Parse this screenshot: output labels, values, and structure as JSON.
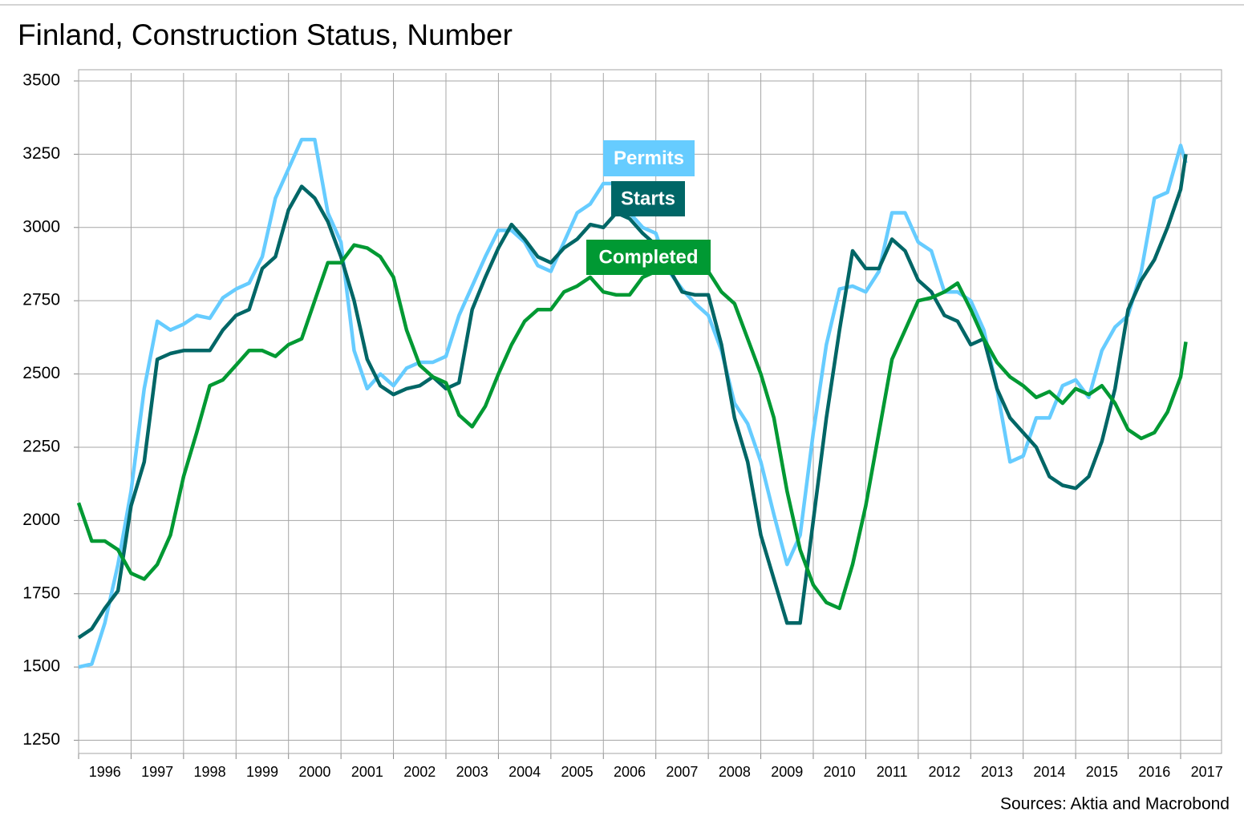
{
  "chart_data": {
    "type": "line",
    "title": "Finland, Construction Status, Number",
    "source": "Sources: Aktia and Macrobond",
    "x": [
      1996,
      1996.25,
      1996.5,
      1996.75,
      1997,
      1997.25,
      1997.5,
      1997.75,
      1998,
      1998.25,
      1998.5,
      1998.75,
      1999,
      1999.25,
      1999.5,
      1999.75,
      2000,
      2000.25,
      2000.5,
      2000.75,
      2001,
      2001.25,
      2001.5,
      2001.75,
      2002,
      2002.25,
      2002.5,
      2002.75,
      2003,
      2003.25,
      2003.5,
      2003.75,
      2004,
      2004.25,
      2004.5,
      2004.75,
      2005,
      2005.25,
      2005.5,
      2005.75,
      2006,
      2006.25,
      2006.5,
      2006.75,
      2007,
      2007.25,
      2007.5,
      2007.75,
      2008,
      2008.25,
      2008.5,
      2008.75,
      2009,
      2009.25,
      2009.5,
      2009.75,
      2010,
      2010.25,
      2010.5,
      2010.75,
      2011,
      2011.25,
      2011.5,
      2011.75,
      2012,
      2012.25,
      2012.5,
      2012.75,
      2013,
      2013.25,
      2013.5,
      2013.75,
      2014,
      2014.25,
      2014.5,
      2014.75,
      2015,
      2015.25,
      2015.5,
      2015.75,
      2016,
      2016.25,
      2016.5,
      2016.75,
      2017,
      2017.1
    ],
    "series": [
      {
        "name": "Permits",
        "color": "#66ccff",
        "values": [
          1500,
          1510,
          1650,
          1850,
          2100,
          2450,
          2680,
          2650,
          2670,
          2700,
          2690,
          2760,
          2790,
          2810,
          2900,
          3100,
          3200,
          3300,
          3300,
          3050,
          2950,
          2580,
          2450,
          2500,
          2460,
          2520,
          2540,
          2540,
          2560,
          2700,
          2800,
          2900,
          2990,
          2990,
          2950,
          2870,
          2850,
          2950,
          3050,
          3080,
          3150,
          3150,
          3050,
          3000,
          2980,
          2850,
          2790,
          2740,
          2700,
          2580,
          2400,
          2330,
          2200,
          2020,
          1850,
          1950,
          2300,
          2600,
          2790,
          2800,
          2780,
          2850,
          3050,
          3050,
          2950,
          2920,
          2780,
          2780,
          2750,
          2650,
          2450,
          2200,
          2220,
          2350,
          2350,
          2460,
          2480,
          2420,
          2580,
          2660,
          2700,
          2850,
          3100,
          3120,
          3280,
          3220
        ]
      },
      {
        "name": "Starts",
        "color": "#006666",
        "values": [
          1600,
          1630,
          1700,
          1760,
          2050,
          2200,
          2550,
          2570,
          2580,
          2580,
          2580,
          2650,
          2700,
          2720,
          2860,
          2900,
          3060,
          3140,
          3100,
          3020,
          2900,
          2750,
          2550,
          2460,
          2430,
          2450,
          2460,
          2490,
          2450,
          2470,
          2720,
          2830,
          2930,
          3010,
          2960,
          2900,
          2880,
          2930,
          2960,
          3010,
          3000,
          3050,
          3030,
          2980,
          2940,
          2860,
          2780,
          2770,
          2770,
          2600,
          2350,
          2200,
          1950,
          1800,
          1650,
          1650,
          2000,
          2350,
          2650,
          2920,
          2860,
          2860,
          2960,
          2920,
          2820,
          2780,
          2700,
          2680,
          2600,
          2620,
          2450,
          2350,
          2300,
          2250,
          2150,
          2120,
          2110,
          2150,
          2270,
          2450,
          2720,
          2820,
          2890,
          3000,
          3130,
          3250
        ]
      },
      {
        "name": "Completed",
        "color": "#009933",
        "values": [
          2060,
          1930,
          1930,
          1900,
          1820,
          1800,
          1850,
          1950,
          2150,
          2300,
          2460,
          2480,
          2530,
          2580,
          2580,
          2560,
          2600,
          2620,
          2750,
          2880,
          2880,
          2940,
          2930,
          2900,
          2830,
          2650,
          2530,
          2490,
          2470,
          2360,
          2320,
          2390,
          2500,
          2600,
          2680,
          2720,
          2720,
          2780,
          2800,
          2830,
          2780,
          2770,
          2770,
          2830,
          2850,
          2880,
          2890,
          2900,
          2850,
          2780,
          2740,
          2620,
          2500,
          2350,
          2100,
          1900,
          1780,
          1720,
          1700,
          1850,
          2050,
          2300,
          2550,
          2650,
          2750,
          2760,
          2780,
          2810,
          2720,
          2620,
          2540,
          2490,
          2460,
          2420,
          2440,
          2400,
          2450,
          2430,
          2460,
          2400,
          2310,
          2280,
          2300,
          2370,
          2490,
          2610
        ]
      }
    ],
    "xlim": [
      1996,
      2017.78
    ],
    "xticks": [
      1996,
      1997,
      1998,
      1999,
      2000,
      2001,
      2002,
      2003,
      2004,
      2005,
      2006,
      2007,
      2008,
      2009,
      2010,
      2011,
      2012,
      2013,
      2014,
      2015,
      2016,
      2017
    ],
    "ylim": [
      1205,
      3500
    ],
    "yticks": [
      1250,
      1500,
      1750,
      2000,
      2250,
      2500,
      2750,
      3000,
      3250,
      3500
    ],
    "grid": true
  }
}
